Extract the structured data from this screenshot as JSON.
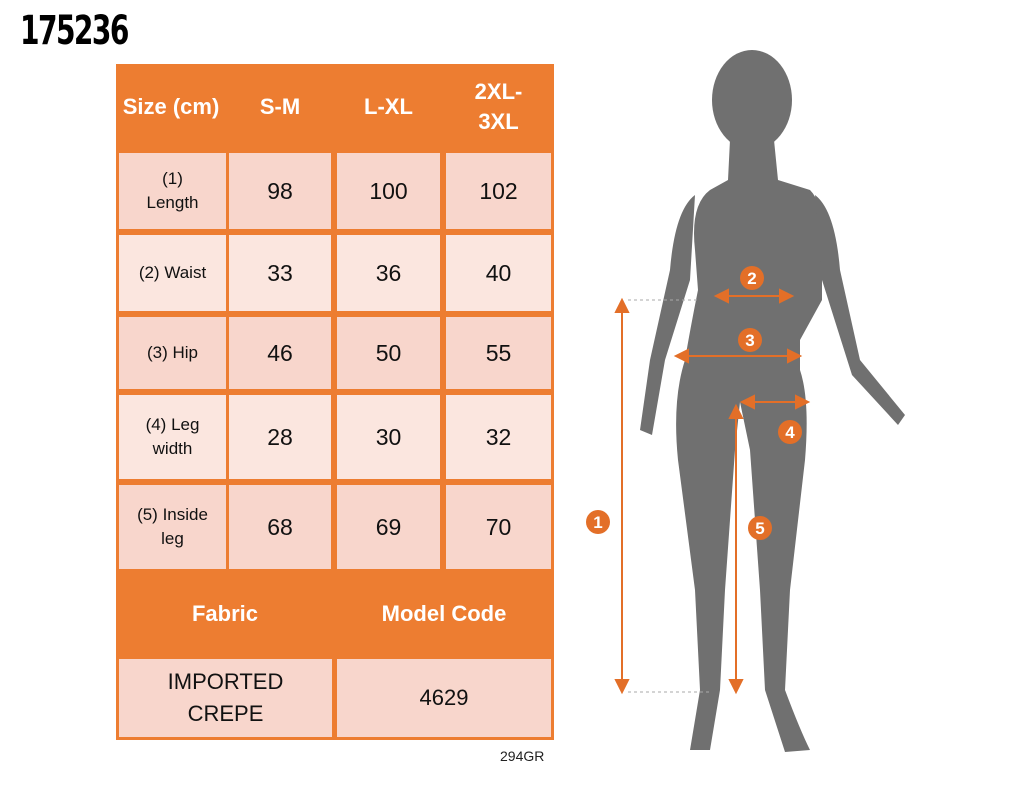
{
  "product_code": "175236",
  "size_table": {
    "header": [
      "Size (cm)",
      "S-M",
      "L-XL",
      "2XL-3XL"
    ],
    "rows": [
      {
        "label": "(1) Length",
        "values": [
          "98",
          "100",
          "102"
        ]
      },
      {
        "label": "(2) Waist",
        "values": [
          "33",
          "36",
          "40"
        ]
      },
      {
        "label": "(3) Hip",
        "values": [
          "46",
          "50",
          "55"
        ]
      },
      {
        "label": "(4) Leg width",
        "values": [
          "28",
          "30",
          "32"
        ]
      },
      {
        "label": "(5) Inside leg",
        "values": [
          "68",
          "69",
          "70"
        ]
      }
    ]
  },
  "fabric": {
    "label": "Fabric",
    "value": "IMPORTED CREPE"
  },
  "model_code": {
    "label": "Model Code",
    "value": "4629"
  },
  "reference": "294GR",
  "markers": [
    "1",
    "2",
    "3",
    "4",
    "5"
  ],
  "colors": {
    "accent": "#ed7d31",
    "row_dark": "#f8d6cc",
    "row_light": "#fbe6df",
    "silhouette": "#707070"
  }
}
